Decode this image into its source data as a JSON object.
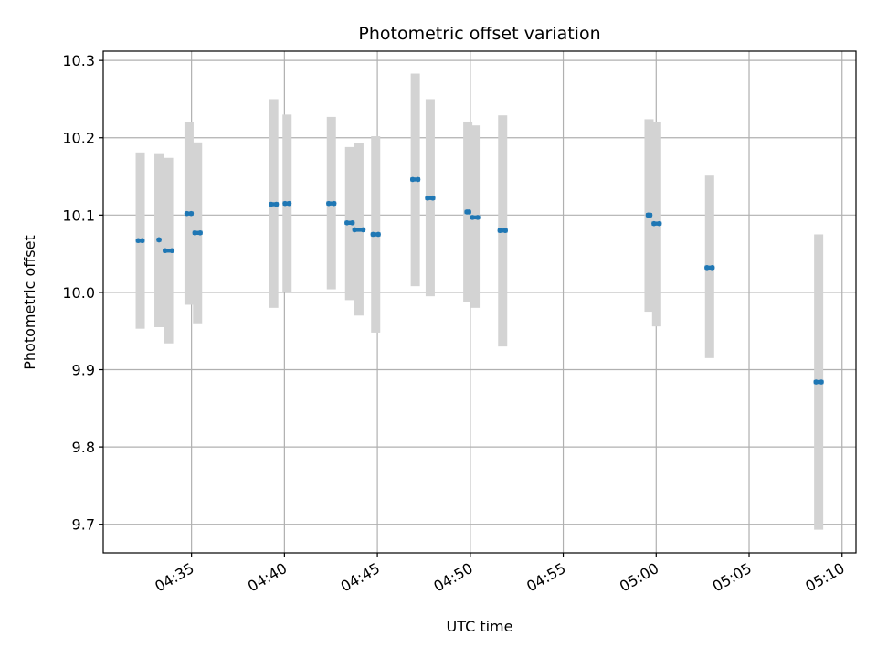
{
  "chart_data": {
    "type": "scatter",
    "title": "Photometric offset variation",
    "xlabel": "UTC time",
    "ylabel": "Photometric offset",
    "x_axis_kind": "time",
    "x_range": [
      "04:30:15",
      "05:10:45"
    ],
    "ylim": [
      9.663,
      10.312
    ],
    "grid": true,
    "xticks": [
      "04:35",
      "04:40",
      "04:45",
      "04:50",
      "04:55",
      "05:00",
      "05:05",
      "05:10"
    ],
    "yticks": [
      9.7,
      9.8,
      9.9,
      10.0,
      10.1,
      10.2,
      10.3
    ],
    "ytick_labels": [
      "9.7",
      "9.8",
      "9.9",
      "10.0",
      "10.1",
      "10.2",
      "10.3"
    ],
    "colors": {
      "marker": "#1f77b4",
      "errorbar": "#d3d3d3",
      "grid": "#b0b0b0"
    },
    "points": [
      {
        "t": "04:32:08",
        "t2": "04:32:21",
        "y": 10.067,
        "lo": 9.953,
        "hi": 10.181
      },
      {
        "t": "04:33:15",
        "t2": "04:33:15",
        "y": 10.068,
        "lo": 9.955,
        "hi": 10.18
      },
      {
        "t": "04:33:35",
        "t2": "04:33:57",
        "y": 10.054,
        "lo": 9.934,
        "hi": 10.174
      },
      {
        "t": "04:34:45",
        "t2": "04:34:59",
        "y": 10.102,
        "lo": 9.984,
        "hi": 10.22
      },
      {
        "t": "04:35:11",
        "t2": "04:35:28",
        "y": 10.077,
        "lo": 9.96,
        "hi": 10.194
      },
      {
        "t": "04:39:17",
        "t2": "04:39:34",
        "y": 10.114,
        "lo": 9.98,
        "hi": 10.25
      },
      {
        "t": "04:40:02",
        "t2": "04:40:15",
        "y": 10.115,
        "lo": 10.0,
        "hi": 10.23
      },
      {
        "t": "04:42:23",
        "t2": "04:42:40",
        "y": 10.115,
        "lo": 10.004,
        "hi": 10.227
      },
      {
        "t": "04:43:22",
        "t2": "04:43:39",
        "y": 10.09,
        "lo": 9.99,
        "hi": 10.188
      },
      {
        "t": "04:43:47",
        "t2": "04:44:14",
        "y": 10.081,
        "lo": 9.97,
        "hi": 10.193
      },
      {
        "t": "04:44:46",
        "t2": "04:45:03",
        "y": 10.075,
        "lo": 9.948,
        "hi": 10.202
      },
      {
        "t": "04:46:54",
        "t2": "04:47:11",
        "y": 10.146,
        "lo": 10.008,
        "hi": 10.283
      },
      {
        "t": "04:47:42",
        "t2": "04:47:59",
        "y": 10.122,
        "lo": 9.995,
        "hi": 10.25
      },
      {
        "t": "04:49:49",
        "t2": "04:49:55",
        "y": 10.104,
        "lo": 9.988,
        "hi": 10.221
      },
      {
        "t": "04:50:07",
        "t2": "04:50:24",
        "y": 10.097,
        "lo": 9.98,
        "hi": 10.216
      },
      {
        "t": "04:51:36",
        "t2": "04:51:53",
        "y": 10.08,
        "lo": 9.93,
        "hi": 10.229
      },
      {
        "t": "04:59:34",
        "t2": "04:59:40",
        "y": 10.1,
        "lo": 9.975,
        "hi": 10.224
      },
      {
        "t": "04:59:53",
        "t2": "05:00:10",
        "y": 10.089,
        "lo": 9.956,
        "hi": 10.221
      },
      {
        "t": "05:02:44",
        "t2": "05:03:01",
        "y": 10.032,
        "lo": 9.915,
        "hi": 10.151
      },
      {
        "t": "05:08:36",
        "t2": "05:08:53",
        "y": 9.884,
        "lo": 9.693,
        "hi": 10.075
      }
    ]
  }
}
